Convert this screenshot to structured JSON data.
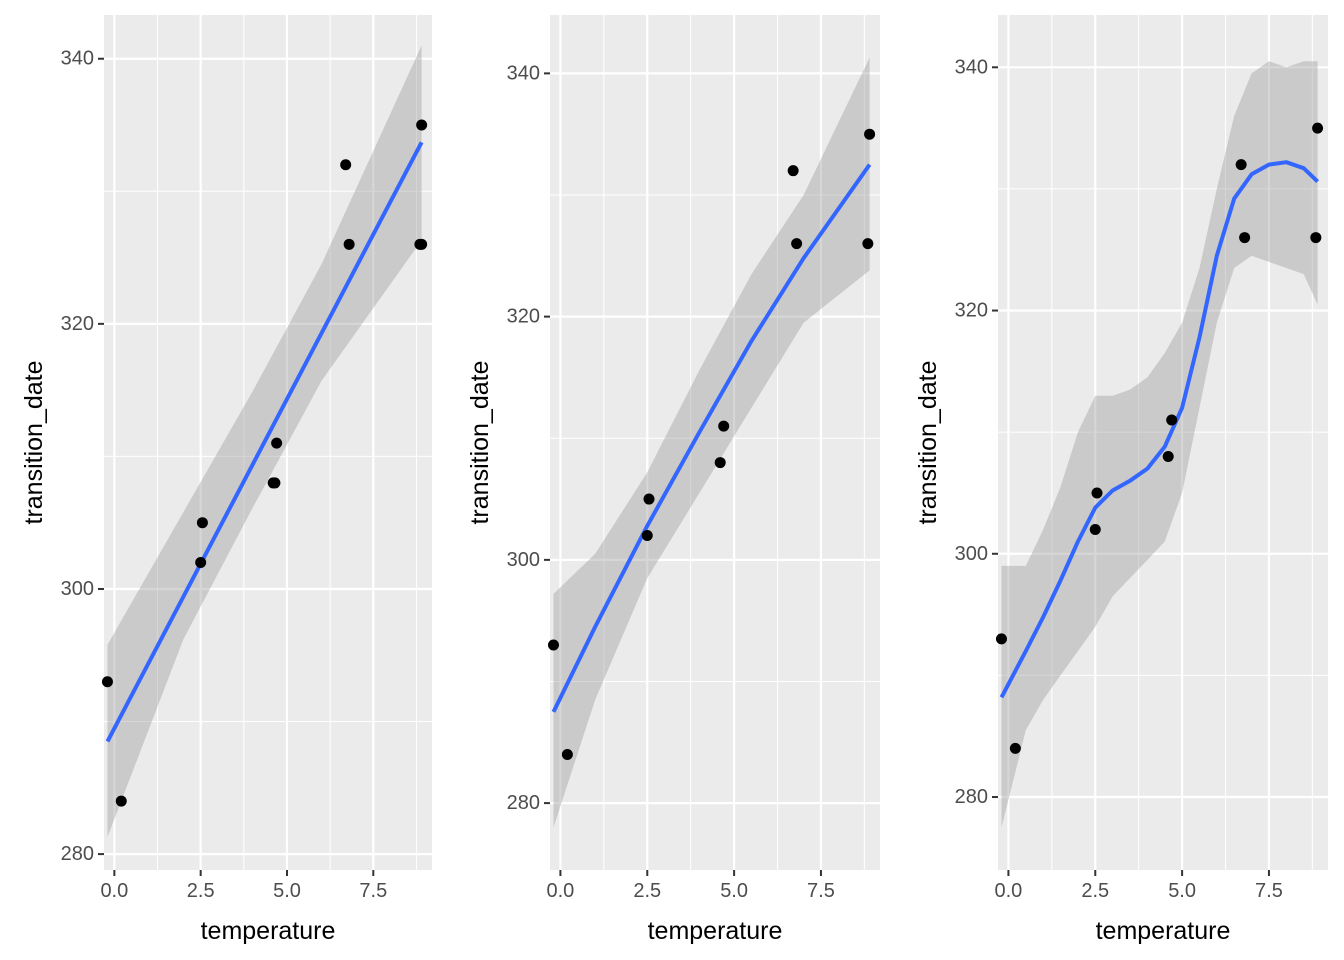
{
  "chart_data": [
    {
      "type": "scatter",
      "smoother": "linear",
      "xlabel": "temperature",
      "ylabel": "transition_date",
      "xlim": [
        -0.3,
        9.2
      ],
      "ylim": [
        278.8,
        343.3
      ],
      "xticks": [
        0,
        2.5,
        5,
        7.5
      ],
      "xtick_labels": [
        "0.0",
        "2.5",
        "5.0",
        "7.5"
      ],
      "yticks": [
        280,
        300,
        320,
        340
      ],
      "ytick_labels": [
        "280",
        "300",
        "320",
        "340"
      ],
      "points": [
        {
          "x": -0.2,
          "y": 293
        },
        {
          "x": 0.2,
          "y": 284
        },
        {
          "x": 2.5,
          "y": 302
        },
        {
          "x": 2.55,
          "y": 305
        },
        {
          "x": 4.6,
          "y": 308
        },
        {
          "x": 4.65,
          "y": 308
        },
        {
          "x": 4.7,
          "y": 311
        },
        {
          "x": 6.7,
          "y": 332
        },
        {
          "x": 6.8,
          "y": 326
        },
        {
          "x": 8.85,
          "y": 326
        },
        {
          "x": 8.9,
          "y": 326
        },
        {
          "x": 8.9,
          "y": 335
        }
      ],
      "fit": {
        "x": [
          -0.2,
          8.9
        ],
        "y": [
          288.5,
          333.7
        ]
      },
      "band": {
        "x": [
          -0.2,
          2.0,
          4.0,
          6.0,
          8.9
        ],
        "lower": [
          281.3,
          296.2,
          306.1,
          315.7,
          326.3
        ],
        "upper": [
          295.8,
          305.8,
          314.9,
          324.5,
          341.0
        ]
      }
    },
    {
      "type": "scatter",
      "smoother": "quadratic",
      "xlabel": "temperature",
      "ylabel": "transition_date",
      "xlim": [
        -0.3,
        9.2
      ],
      "ylim": [
        274.5,
        344.8
      ],
      "xticks": [
        0,
        2.5,
        5,
        7.5
      ],
      "xtick_labels": [
        "0.0",
        "2.5",
        "5.0",
        "7.5"
      ],
      "yticks": [
        280,
        300,
        320,
        340
      ],
      "ytick_labels": [
        "280",
        "300",
        "320",
        "340"
      ],
      "points": [
        {
          "x": -0.2,
          "y": 293
        },
        {
          "x": 0.2,
          "y": 284
        },
        {
          "x": 2.5,
          "y": 302
        },
        {
          "x": 2.55,
          "y": 305
        },
        {
          "x": 4.6,
          "y": 308
        },
        {
          "x": 4.7,
          "y": 311
        },
        {
          "x": 6.7,
          "y": 332
        },
        {
          "x": 6.8,
          "y": 326
        },
        {
          "x": 8.85,
          "y": 326
        },
        {
          "x": 8.9,
          "y": 335
        }
      ],
      "fit": {
        "x": [
          -0.2,
          1.0,
          2.5,
          4.0,
          5.5,
          7.0,
          8.9
        ],
        "y": [
          287.5,
          294.5,
          302.8,
          310.5,
          318.0,
          324.8,
          332.5
        ]
      },
      "band": {
        "x": [
          -0.2,
          1.0,
          2.5,
          4.0,
          5.5,
          7.0,
          8.9
        ],
        "lower": [
          278.0,
          288.5,
          298.5,
          305.5,
          312.5,
          319.5,
          323.8
        ],
        "upper": [
          297.2,
          300.5,
          307.2,
          315.6,
          323.5,
          330.0,
          341.3
        ]
      }
    },
    {
      "type": "scatter",
      "smoother": "loess",
      "xlabel": "temperature",
      "ylabel": "transition_date",
      "xlim": [
        -0.3,
        9.2
      ],
      "ylim": [
        274.0,
        344.3
      ],
      "xticks": [
        0,
        2.5,
        5,
        7.5
      ],
      "xtick_labels": [
        "0.0",
        "2.5",
        "5.0",
        "7.5"
      ],
      "yticks": [
        280,
        300,
        320,
        340
      ],
      "ytick_labels": [
        "280",
        "300",
        "320",
        "340"
      ],
      "points": [
        {
          "x": -0.2,
          "y": 293
        },
        {
          "x": 0.2,
          "y": 284
        },
        {
          "x": 2.5,
          "y": 302
        },
        {
          "x": 2.55,
          "y": 305
        },
        {
          "x": 4.6,
          "y": 308
        },
        {
          "x": 4.7,
          "y": 311
        },
        {
          "x": 6.7,
          "y": 332
        },
        {
          "x": 6.8,
          "y": 326
        },
        {
          "x": 8.85,
          "y": 326
        },
        {
          "x": 8.9,
          "y": 335
        }
      ],
      "fit": {
        "x": [
          -0.2,
          0.5,
          1.0,
          1.5,
          2.0,
          2.5,
          3.0,
          3.5,
          4.0,
          4.5,
          5.0,
          5.5,
          6.0,
          6.5,
          7.0,
          7.5,
          8.0,
          8.5,
          8.9
        ],
        "y": [
          288.2,
          292.0,
          294.8,
          297.8,
          301.0,
          303.8,
          305.2,
          306.0,
          307.0,
          308.8,
          312.0,
          317.8,
          324.5,
          329.2,
          331.2,
          332.0,
          332.2,
          331.7,
          330.6
        ]
      },
      "band": {
        "x": [
          -0.2,
          0.5,
          1.0,
          1.5,
          2.0,
          2.5,
          3.0,
          3.5,
          4.0,
          4.5,
          5.0,
          5.5,
          6.0,
          6.5,
          7.0,
          7.5,
          8.0,
          8.5,
          8.9
        ],
        "lower": [
          277.5,
          285.5,
          288.0,
          290.0,
          292.0,
          294.0,
          296.5,
          298.0,
          299.5,
          301.0,
          305.0,
          312.0,
          319.0,
          323.5,
          324.5,
          324.0,
          323.5,
          323.0,
          320.5
        ],
        "upper": [
          299.0,
          299.0,
          302.0,
          305.5,
          310.0,
          313.0,
          313.0,
          313.5,
          314.5,
          316.5,
          319.0,
          323.5,
          330.0,
          336.0,
          339.5,
          340.5,
          340.0,
          340.5,
          340.5
        ]
      }
    }
  ]
}
